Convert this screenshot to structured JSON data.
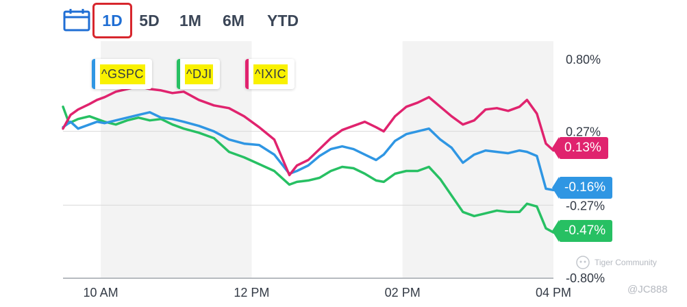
{
  "toolbar": {
    "ranges": [
      "1D",
      "5D",
      "1M",
      "6M",
      "YTD"
    ],
    "active": "1D"
  },
  "colors": {
    "gspc": "#2f96e3",
    "dji": "#27c063",
    "ixic": "#e0236e",
    "active_range": "#1f6ed4",
    "highlight_box": "#d7262d",
    "legend_highlight": "#f9f100"
  },
  "chart_data": {
    "type": "line",
    "y_unit": "%",
    "y_ticks": [
      "0.80%",
      "0.27%",
      "-0.27%",
      "-0.80%"
    ],
    "y_tick_values": [
      0.8,
      0.27,
      -0.27,
      -0.8
    ],
    "ylim": [
      -0.8,
      0.8
    ],
    "x_tick_labels": [
      "10 AM",
      "12 PM",
      "02 PM",
      "04 PM"
    ],
    "x_tick_times": [
      10.0,
      12.0,
      14.0,
      16.0
    ],
    "xlim": [
      9.5,
      16.0
    ],
    "grid": true,
    "legend_placement": "top-left",
    "shaded_bands": [
      [
        10.0,
        12.0
      ],
      [
        14.0,
        16.0
      ]
    ],
    "series": [
      {
        "name": "^GSPC",
        "end_label": "-0.16%",
        "color": "#2f96e3",
        "points": [
          [
            9.5,
            0.3
          ],
          [
            9.6,
            0.34
          ],
          [
            9.7,
            0.29
          ],
          [
            9.85,
            0.32
          ],
          [
            9.95,
            0.34
          ],
          [
            10.05,
            0.33
          ],
          [
            10.2,
            0.35
          ],
          [
            10.35,
            0.37
          ],
          [
            10.5,
            0.39
          ],
          [
            10.65,
            0.41
          ],
          [
            10.8,
            0.37
          ],
          [
            10.95,
            0.36
          ],
          [
            11.1,
            0.34
          ],
          [
            11.3,
            0.31
          ],
          [
            11.5,
            0.27
          ],
          [
            11.7,
            0.21
          ],
          [
            11.9,
            0.18
          ],
          [
            12.1,
            0.17
          ],
          [
            12.3,
            0.1
          ],
          [
            12.5,
            -0.04
          ],
          [
            12.6,
            -0.02
          ],
          [
            12.75,
            0.02
          ],
          [
            12.9,
            0.09
          ],
          [
            13.05,
            0.14
          ],
          [
            13.2,
            0.16
          ],
          [
            13.35,
            0.14
          ],
          [
            13.5,
            0.1
          ],
          [
            13.65,
            0.06
          ],
          [
            13.75,
            0.1
          ],
          [
            13.9,
            0.2
          ],
          [
            14.05,
            0.25
          ],
          [
            14.2,
            0.27
          ],
          [
            14.35,
            0.29
          ],
          [
            14.5,
            0.21
          ],
          [
            14.65,
            0.15
          ],
          [
            14.8,
            0.04
          ],
          [
            14.95,
            0.1
          ],
          [
            15.1,
            0.13
          ],
          [
            15.25,
            0.12
          ],
          [
            15.4,
            0.11
          ],
          [
            15.55,
            0.13
          ],
          [
            15.65,
            0.12
          ],
          [
            15.78,
            0.09
          ],
          [
            15.9,
            -0.15
          ],
          [
            16.0,
            -0.16
          ]
        ]
      },
      {
        "name": "^DJI",
        "end_label": "-0.47%",
        "color": "#27c063",
        "points": [
          [
            9.5,
            0.45
          ],
          [
            9.58,
            0.33
          ],
          [
            9.7,
            0.36
          ],
          [
            9.85,
            0.38
          ],
          [
            9.95,
            0.36
          ],
          [
            10.05,
            0.34
          ],
          [
            10.2,
            0.32
          ],
          [
            10.35,
            0.35
          ],
          [
            10.5,
            0.37
          ],
          [
            10.65,
            0.35
          ],
          [
            10.8,
            0.36
          ],
          [
            10.95,
            0.32
          ],
          [
            11.1,
            0.29
          ],
          [
            11.3,
            0.26
          ],
          [
            11.5,
            0.22
          ],
          [
            11.7,
            0.12
          ],
          [
            11.9,
            0.08
          ],
          [
            12.1,
            0.03
          ],
          [
            12.3,
            -0.02
          ],
          [
            12.5,
            -0.12
          ],
          [
            12.6,
            -0.1
          ],
          [
            12.75,
            -0.09
          ],
          [
            12.9,
            -0.07
          ],
          [
            13.05,
            -0.02
          ],
          [
            13.2,
            0.01
          ],
          [
            13.35,
            0.0
          ],
          [
            13.5,
            -0.04
          ],
          [
            13.65,
            -0.09
          ],
          [
            13.75,
            -0.1
          ],
          [
            13.9,
            -0.04
          ],
          [
            14.05,
            -0.02
          ],
          [
            14.2,
            -0.02
          ],
          [
            14.35,
            0.01
          ],
          [
            14.5,
            -0.08
          ],
          [
            14.65,
            -0.2
          ],
          [
            14.8,
            -0.32
          ],
          [
            14.95,
            -0.35
          ],
          [
            15.1,
            -0.33
          ],
          [
            15.25,
            -0.31
          ],
          [
            15.4,
            -0.32
          ],
          [
            15.55,
            -0.32
          ],
          [
            15.65,
            -0.26
          ],
          [
            15.78,
            -0.28
          ],
          [
            15.9,
            -0.44
          ],
          [
            16.0,
            -0.47
          ]
        ]
      },
      {
        "name": "^IXIC",
        "end_label": "0.13%",
        "color": "#e0236e",
        "points": [
          [
            9.5,
            0.29
          ],
          [
            9.6,
            0.39
          ],
          [
            9.7,
            0.43
          ],
          [
            9.85,
            0.47
          ],
          [
            9.95,
            0.5
          ],
          [
            10.05,
            0.52
          ],
          [
            10.2,
            0.56
          ],
          [
            10.35,
            0.58
          ],
          [
            10.5,
            0.6
          ],
          [
            10.65,
            0.58
          ],
          [
            10.8,
            0.57
          ],
          [
            10.95,
            0.55
          ],
          [
            11.1,
            0.56
          ],
          [
            11.3,
            0.5
          ],
          [
            11.5,
            0.46
          ],
          [
            11.7,
            0.44
          ],
          [
            11.9,
            0.38
          ],
          [
            12.1,
            0.3
          ],
          [
            12.3,
            0.21
          ],
          [
            12.5,
            -0.05
          ],
          [
            12.6,
            0.02
          ],
          [
            12.75,
            0.06
          ],
          [
            12.9,
            0.14
          ],
          [
            13.05,
            0.22
          ],
          [
            13.2,
            0.28
          ],
          [
            13.35,
            0.31
          ],
          [
            13.5,
            0.34
          ],
          [
            13.65,
            0.3
          ],
          [
            13.75,
            0.27
          ],
          [
            13.9,
            0.38
          ],
          [
            14.05,
            0.45
          ],
          [
            14.2,
            0.48
          ],
          [
            14.35,
            0.52
          ],
          [
            14.5,
            0.45
          ],
          [
            14.65,
            0.38
          ],
          [
            14.8,
            0.32
          ],
          [
            14.95,
            0.35
          ],
          [
            15.1,
            0.43
          ],
          [
            15.25,
            0.44
          ],
          [
            15.4,
            0.42
          ],
          [
            15.55,
            0.45
          ],
          [
            15.65,
            0.5
          ],
          [
            15.78,
            0.4
          ],
          [
            15.9,
            0.18
          ],
          [
            16.0,
            0.13
          ]
        ]
      }
    ]
  },
  "watermark": "Tiger Community",
  "handle": "@JC888"
}
